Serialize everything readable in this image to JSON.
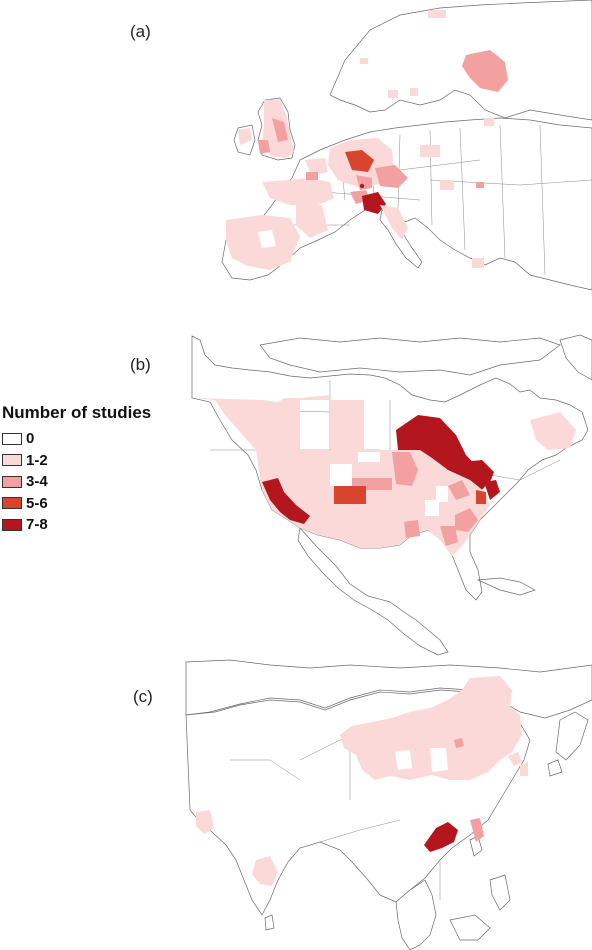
{
  "panels": {
    "a": {
      "label": "(a)"
    },
    "b": {
      "label": "(b)"
    },
    "c": {
      "label": "(c)"
    }
  },
  "legend": {
    "title": "Number of studies",
    "items": [
      {
        "label": "0",
        "color": "#ffffff"
      },
      {
        "label": "1-2",
        "color": "#fcd9d9"
      },
      {
        "label": "3-4",
        "color": "#f3a0a0"
      },
      {
        "label": "5-6",
        "color": "#d9442e"
      },
      {
        "label": "7-8",
        "color": "#b3161c"
      }
    ]
  }
}
